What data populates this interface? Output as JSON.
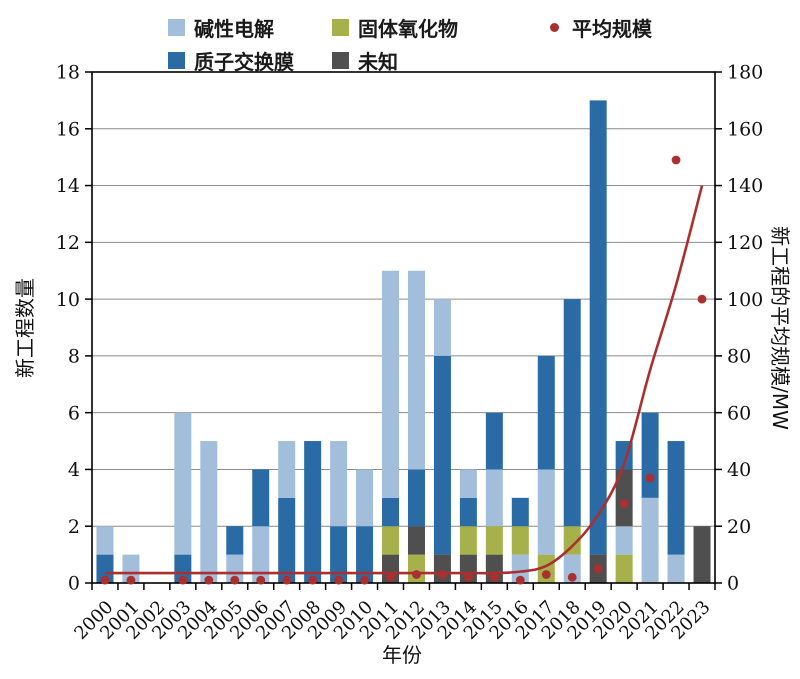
{
  "legend": {
    "items": [
      {
        "label": "碱性电解",
        "color": "#a2bedb",
        "shape": "square"
      },
      {
        "label": "固体氧化物",
        "color": "#a6b14b",
        "shape": "square"
      },
      {
        "label": "平均规模",
        "color": "#ab2f2f",
        "shape": "dot"
      },
      {
        "label": "质子交换膜",
        "color": "#2a6ba6",
        "shape": "square"
      },
      {
        "label": "未知",
        "color": "#4f4f4f",
        "shape": "square"
      }
    ]
  },
  "chart_data": {
    "type": "bar",
    "subtype": "stacked-bar-with-line-and-dots",
    "title": "",
    "xlabel": "年份",
    "ylabel_left": "新工程数量",
    "ylabel_right": "新工程的平均规模/MW",
    "ylim_left": [
      0,
      18
    ],
    "ylim_right": [
      0,
      180
    ],
    "yticks_left": [
      0,
      2,
      4,
      6,
      8,
      10,
      12,
      14,
      16,
      18
    ],
    "yticks_right": [
      0,
      20,
      40,
      60,
      80,
      100,
      120,
      140,
      160,
      180
    ],
    "grid": true,
    "legend_position": "top",
    "categories": [
      2000,
      2001,
      2002,
      2003,
      2004,
      2005,
      2006,
      2007,
      2008,
      2009,
      2010,
      2011,
      2012,
      2013,
      2014,
      2015,
      2016,
      2017,
      2018,
      2019,
      2020,
      2021,
      2022,
      2023
    ],
    "colors": {
      "碱性电解": "#a2bedb",
      "质子交换膜": "#2a6ba6",
      "固体氧化物": "#a6b14b",
      "未知": "#4f4f4f",
      "平均规模": "#ab2f2f"
    },
    "stacks": [
      [
        {
          "type": "质子交换膜",
          "value": 1
        },
        {
          "type": "碱性电解",
          "value": 1
        }
      ],
      [
        {
          "type": "碱性电解",
          "value": 1
        }
      ],
      [],
      [
        {
          "type": "质子交换膜",
          "value": 1
        },
        {
          "type": "碱性电解",
          "value": 5
        }
      ],
      [
        {
          "type": "碱性电解",
          "value": 5
        }
      ],
      [
        {
          "type": "碱性电解",
          "value": 1
        },
        {
          "type": "质子交换膜",
          "value": 1
        }
      ],
      [
        {
          "type": "碱性电解",
          "value": 2
        },
        {
          "type": "质子交换膜",
          "value": 2
        }
      ],
      [
        {
          "type": "质子交换膜",
          "value": 3
        },
        {
          "type": "碱性电解",
          "value": 2
        }
      ],
      [
        {
          "type": "质子交换膜",
          "value": 5
        }
      ],
      [
        {
          "type": "质子交换膜",
          "value": 2
        },
        {
          "type": "碱性电解",
          "value": 3
        }
      ],
      [
        {
          "type": "质子交换膜",
          "value": 2
        },
        {
          "type": "碱性电解",
          "value": 2
        }
      ],
      [
        {
          "type": "未知",
          "value": 1
        },
        {
          "type": "固体氧化物",
          "value": 1
        },
        {
          "type": "质子交换膜",
          "value": 1
        },
        {
          "type": "碱性电解",
          "value": 8
        }
      ],
      [
        {
          "type": "固体氧化物",
          "value": 1
        },
        {
          "type": "未知",
          "value": 1
        },
        {
          "type": "质子交换膜",
          "value": 2
        },
        {
          "type": "碱性电解",
          "value": 7
        }
      ],
      [
        {
          "type": "未知",
          "value": 1
        },
        {
          "type": "质子交换膜",
          "value": 7
        },
        {
          "type": "碱性电解",
          "value": 2
        }
      ],
      [
        {
          "type": "未知",
          "value": 1
        },
        {
          "type": "固体氧化物",
          "value": 1
        },
        {
          "type": "质子交换膜",
          "value": 1
        },
        {
          "type": "碱性电解",
          "value": 1
        }
      ],
      [
        {
          "type": "未知",
          "value": 1
        },
        {
          "type": "固体氧化物",
          "value": 1
        },
        {
          "type": "碱性电解",
          "value": 2
        },
        {
          "type": "质子交换膜",
          "value": 2
        }
      ],
      [
        {
          "type": "碱性电解",
          "value": 1
        },
        {
          "type": "固体氧化物",
          "value": 1
        },
        {
          "type": "质子交换膜",
          "value": 1
        }
      ],
      [
        {
          "type": "固体氧化物",
          "value": 1
        },
        {
          "type": "碱性电解",
          "value": 3
        },
        {
          "type": "质子交换膜",
          "value": 4
        }
      ],
      [
        {
          "type": "碱性电解",
          "value": 1
        },
        {
          "type": "固体氧化物",
          "value": 1
        },
        {
          "type": "质子交换膜",
          "value": 8
        }
      ],
      [
        {
          "type": "未知",
          "value": 1
        },
        {
          "type": "质子交换膜",
          "value": 16
        }
      ],
      [
        {
          "type": "固体氧化物",
          "value": 1
        },
        {
          "type": "碱性电解",
          "value": 1
        },
        {
          "type": "未知",
          "value": 2
        },
        {
          "type": "质子交换膜",
          "value": 1
        }
      ],
      [
        {
          "type": "碱性电解",
          "value": 3
        },
        {
          "type": "质子交换膜",
          "value": 3
        }
      ],
      [
        {
          "type": "碱性电解",
          "value": 1
        },
        {
          "type": "质子交换膜",
          "value": 4
        }
      ],
      [
        {
          "type": "未知",
          "value": 2
        }
      ]
    ],
    "avg_dots_mw": [
      1,
      1,
      null,
      1,
      1,
      1,
      1,
      1,
      1,
      1,
      1,
      2,
      3,
      3,
      2,
      2,
      1,
      3,
      2,
      5,
      28,
      37,
      149,
      100
    ],
    "trend_mw": [
      3.5,
      3.5,
      3.5,
      3.5,
      3.5,
      3.5,
      3.5,
      3.5,
      3.5,
      3.5,
      3.5,
      3.5,
      3.5,
      3.5,
      3.5,
      3.5,
      4,
      6,
      13,
      24,
      42,
      75,
      105,
      140
    ]
  }
}
